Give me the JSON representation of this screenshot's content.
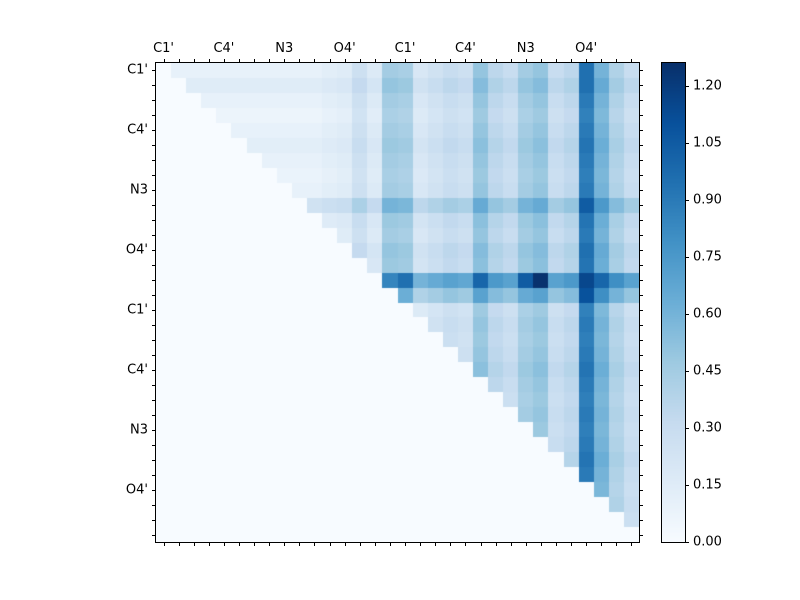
{
  "colors": {
    "background": "#ffffff",
    "axis": "#000000",
    "text": "#000000"
  },
  "chart_data": {
    "type": "heatmap",
    "title": "",
    "matrix_size": 32,
    "x_tick_labels": [
      "C1'",
      "C4'",
      "N3",
      "O4'",
      "C1'",
      "C4'",
      "N3",
      "O4'"
    ],
    "y_tick_labels": [
      "C1'",
      "C4'",
      "N3",
      "O4'",
      "C1'",
      "C4'",
      "N3",
      "O4'"
    ],
    "tick_label_every_n_cells": 4,
    "colormap": "Blues",
    "vmin": 0.0,
    "vmax": 1.26,
    "colorbar_tick_labels": [
      "0.00",
      "0.15",
      "0.30",
      "0.45",
      "0.60",
      "0.75",
      "0.90",
      "1.05",
      "1.20"
    ],
    "colorbar_tick_values": [
      0.0,
      0.15,
      0.3,
      0.45,
      0.6,
      0.75,
      0.9,
      1.05,
      1.2
    ],
    "colormap_stops": [
      [
        0.0,
        247,
        251,
        255
      ],
      [
        0.125,
        222,
        235,
        247
      ],
      [
        0.25,
        198,
        219,
        239
      ],
      [
        0.375,
        158,
        202,
        225
      ],
      [
        0.5,
        107,
        174,
        214
      ],
      [
        0.625,
        66,
        146,
        198
      ],
      [
        0.75,
        33,
        113,
        177
      ],
      [
        0.875,
        8,
        81,
        156
      ],
      [
        1.0,
        8,
        48,
        107
      ]
    ],
    "matrix": [
      [
        0,
        0.1,
        0.1,
        0.1,
        0.1,
        0.1,
        0.1,
        0.1,
        0.1,
        0.1,
        0.1,
        0.13,
        0.15,
        0.27,
        0.17,
        0.45,
        0.43,
        0.2,
        0.25,
        0.3,
        0.27,
        0.5,
        0.35,
        0.3,
        0.45,
        0.5,
        0.3,
        0.35,
        0.95,
        0.6,
        0.4,
        0.3
      ],
      [
        0,
        0,
        0.15,
        0.15,
        0.15,
        0.15,
        0.15,
        0.15,
        0.15,
        0.15,
        0.15,
        0.18,
        0.2,
        0.32,
        0.22,
        0.5,
        0.48,
        0.25,
        0.3,
        0.35,
        0.32,
        0.55,
        0.4,
        0.35,
        0.5,
        0.55,
        0.35,
        0.4,
        0.95,
        0.65,
        0.45,
        0.35
      ],
      [
        0,
        0,
        0,
        0.1,
        0.1,
        0.1,
        0.1,
        0.1,
        0.1,
        0.1,
        0.1,
        0.13,
        0.15,
        0.27,
        0.17,
        0.45,
        0.43,
        0.2,
        0.25,
        0.3,
        0.27,
        0.5,
        0.35,
        0.3,
        0.45,
        0.5,
        0.3,
        0.35,
        0.9,
        0.6,
        0.4,
        0.3
      ],
      [
        0,
        0,
        0,
        0,
        0.07,
        0.07,
        0.07,
        0.07,
        0.07,
        0.07,
        0.07,
        0.1,
        0.12,
        0.24,
        0.14,
        0.42,
        0.4,
        0.17,
        0.22,
        0.27,
        0.24,
        0.47,
        0.32,
        0.27,
        0.42,
        0.47,
        0.27,
        0.32,
        0.87,
        0.57,
        0.37,
        0.27
      ],
      [
        0,
        0,
        0,
        0,
        0,
        0.1,
        0.1,
        0.1,
        0.1,
        0.1,
        0.1,
        0.13,
        0.15,
        0.27,
        0.17,
        0.45,
        0.43,
        0.2,
        0.25,
        0.3,
        0.27,
        0.5,
        0.35,
        0.3,
        0.45,
        0.5,
        0.3,
        0.35,
        0.9,
        0.6,
        0.4,
        0.3
      ],
      [
        0,
        0,
        0,
        0,
        0,
        0,
        0.13,
        0.13,
        0.13,
        0.13,
        0.13,
        0.16,
        0.18,
        0.3,
        0.2,
        0.48,
        0.46,
        0.23,
        0.28,
        0.33,
        0.3,
        0.53,
        0.38,
        0.33,
        0.48,
        0.53,
        0.33,
        0.38,
        0.93,
        0.63,
        0.43,
        0.33
      ],
      [
        0,
        0,
        0,
        0,
        0,
        0,
        0,
        0.1,
        0.1,
        0.1,
        0.1,
        0.13,
        0.15,
        0.27,
        0.17,
        0.45,
        0.43,
        0.2,
        0.25,
        0.3,
        0.27,
        0.5,
        0.35,
        0.3,
        0.45,
        0.5,
        0.3,
        0.35,
        0.9,
        0.6,
        0.4,
        0.3
      ],
      [
        0,
        0,
        0,
        0,
        0,
        0,
        0,
        0,
        0.08,
        0.08,
        0.08,
        0.11,
        0.13,
        0.25,
        0.15,
        0.43,
        0.41,
        0.18,
        0.23,
        0.28,
        0.25,
        0.48,
        0.33,
        0.28,
        0.43,
        0.48,
        0.28,
        0.33,
        0.88,
        0.58,
        0.38,
        0.28
      ],
      [
        0,
        0,
        0,
        0,
        0,
        0,
        0,
        0,
        0,
        0.1,
        0.1,
        0.13,
        0.15,
        0.27,
        0.17,
        0.45,
        0.43,
        0.2,
        0.25,
        0.3,
        0.27,
        0.5,
        0.35,
        0.3,
        0.45,
        0.5,
        0.3,
        0.35,
        0.9,
        0.6,
        0.4,
        0.3
      ],
      [
        0,
        0,
        0,
        0,
        0,
        0,
        0,
        0,
        0,
        0,
        0.25,
        0.28,
        0.3,
        0.42,
        0.32,
        0.6,
        0.58,
        0.35,
        0.4,
        0.45,
        0.42,
        0.65,
        0.5,
        0.45,
        0.6,
        0.65,
        0.45,
        0.5,
        1.05,
        0.75,
        0.55,
        0.45
      ],
      [
        0,
        0,
        0,
        0,
        0,
        0,
        0,
        0,
        0,
        0,
        0,
        0.16,
        0.18,
        0.3,
        0.2,
        0.48,
        0.46,
        0.23,
        0.28,
        0.33,
        0.3,
        0.53,
        0.38,
        0.33,
        0.48,
        0.53,
        0.33,
        0.38,
        0.93,
        0.63,
        0.43,
        0.33
      ],
      [
        0,
        0,
        0,
        0,
        0,
        0,
        0,
        0,
        0,
        0,
        0,
        0,
        0.15,
        0.27,
        0.17,
        0.45,
        0.43,
        0.2,
        0.25,
        0.3,
        0.27,
        0.5,
        0.35,
        0.3,
        0.45,
        0.5,
        0.3,
        0.35,
        0.9,
        0.6,
        0.4,
        0.3
      ],
      [
        0,
        0,
        0,
        0,
        0,
        0,
        0,
        0,
        0,
        0,
        0,
        0,
        0,
        0.32,
        0.22,
        0.5,
        0.48,
        0.25,
        0.3,
        0.35,
        0.32,
        0.55,
        0.4,
        0.35,
        0.5,
        0.55,
        0.35,
        0.4,
        0.95,
        0.65,
        0.45,
        0.35
      ],
      [
        0,
        0,
        0,
        0,
        0,
        0,
        0,
        0,
        0,
        0,
        0,
        0,
        0,
        0,
        0.2,
        0.48,
        0.46,
        0.23,
        0.28,
        0.33,
        0.3,
        0.53,
        0.38,
        0.33,
        0.48,
        0.53,
        0.33,
        0.38,
        0.93,
        0.63,
        0.43,
        0.33
      ],
      [
        0,
        0,
        0,
        0,
        0,
        0,
        0,
        0,
        0,
        0,
        0,
        0,
        0,
        0,
        0,
        0.85,
        0.95,
        0.6,
        0.65,
        0.7,
        0.67,
        1.0,
        0.75,
        0.7,
        1.05,
        1.25,
        0.7,
        0.75,
        1.15,
        1.0,
        0.8,
        0.7
      ],
      [
        0,
        0,
        0,
        0,
        0,
        0,
        0,
        0,
        0,
        0,
        0,
        0,
        0,
        0,
        0,
        0,
        0.63,
        0.4,
        0.45,
        0.5,
        0.47,
        0.7,
        0.55,
        0.5,
        0.65,
        0.7,
        0.5,
        0.55,
        1.1,
        0.8,
        0.6,
        0.5
      ],
      [
        0,
        0,
        0,
        0,
        0,
        0,
        0,
        0,
        0,
        0,
        0,
        0,
        0,
        0,
        0,
        0,
        0,
        0.17,
        0.22,
        0.27,
        0.24,
        0.47,
        0.32,
        0.27,
        0.42,
        0.47,
        0.27,
        0.32,
        0.87,
        0.57,
        0.37,
        0.27
      ],
      [
        0,
        0,
        0,
        0,
        0,
        0,
        0,
        0,
        0,
        0,
        0,
        0,
        0,
        0,
        0,
        0,
        0,
        0,
        0.25,
        0.3,
        0.27,
        0.5,
        0.35,
        0.3,
        0.45,
        0.5,
        0.3,
        0.35,
        0.9,
        0.6,
        0.4,
        0.3
      ],
      [
        0,
        0,
        0,
        0,
        0,
        0,
        0,
        0,
        0,
        0,
        0,
        0,
        0,
        0,
        0,
        0,
        0,
        0,
        0,
        0.28,
        0.25,
        0.48,
        0.33,
        0.28,
        0.43,
        0.48,
        0.28,
        0.33,
        0.88,
        0.58,
        0.38,
        0.28
      ],
      [
        0,
        0,
        0,
        0,
        0,
        0,
        0,
        0,
        0,
        0,
        0,
        0,
        0,
        0,
        0,
        0,
        0,
        0,
        0,
        0,
        0.27,
        0.5,
        0.35,
        0.3,
        0.45,
        0.5,
        0.3,
        0.35,
        0.9,
        0.6,
        0.4,
        0.3
      ],
      [
        0,
        0,
        0,
        0,
        0,
        0,
        0,
        0,
        0,
        0,
        0,
        0,
        0,
        0,
        0,
        0,
        0,
        0,
        0,
        0,
        0,
        0.53,
        0.38,
        0.33,
        0.48,
        0.53,
        0.33,
        0.38,
        0.93,
        0.63,
        0.43,
        0.33
      ],
      [
        0,
        0,
        0,
        0,
        0,
        0,
        0,
        0,
        0,
        0,
        0,
        0,
        0,
        0,
        0,
        0,
        0,
        0,
        0,
        0,
        0,
        0,
        0.35,
        0.3,
        0.45,
        0.5,
        0.3,
        0.35,
        0.9,
        0.6,
        0.4,
        0.3
      ],
      [
        0,
        0,
        0,
        0,
        0,
        0,
        0,
        0,
        0,
        0,
        0,
        0,
        0,
        0,
        0,
        0,
        0,
        0,
        0,
        0,
        0,
        0,
        0,
        0.28,
        0.43,
        0.48,
        0.28,
        0.33,
        0.88,
        0.58,
        0.38,
        0.28
      ],
      [
        0,
        0,
        0,
        0,
        0,
        0,
        0,
        0,
        0,
        0,
        0,
        0,
        0,
        0,
        0,
        0,
        0,
        0,
        0,
        0,
        0,
        0,
        0,
        0,
        0.45,
        0.5,
        0.3,
        0.35,
        0.9,
        0.6,
        0.4,
        0.3
      ],
      [
        0,
        0,
        0,
        0,
        0,
        0,
        0,
        0,
        0,
        0,
        0,
        0,
        0,
        0,
        0,
        0,
        0,
        0,
        0,
        0,
        0,
        0,
        0,
        0,
        0,
        0.48,
        0.28,
        0.33,
        0.88,
        0.58,
        0.38,
        0.28
      ],
      [
        0,
        0,
        0,
        0,
        0,
        0,
        0,
        0,
        0,
        0,
        0,
        0,
        0,
        0,
        0,
        0,
        0,
        0,
        0,
        0,
        0,
        0,
        0,
        0,
        0,
        0,
        0.3,
        0.35,
        0.9,
        0.6,
        0.4,
        0.3
      ],
      [
        0,
        0,
        0,
        0,
        0,
        0,
        0,
        0,
        0,
        0,
        0,
        0,
        0,
        0,
        0,
        0,
        0,
        0,
        0,
        0,
        0,
        0,
        0,
        0,
        0,
        0,
        0,
        0.38,
        0.93,
        0.63,
        0.43,
        0.33
      ],
      [
        0,
        0,
        0,
        0,
        0,
        0,
        0,
        0,
        0,
        0,
        0,
        0,
        0,
        0,
        0,
        0,
        0,
        0,
        0,
        0,
        0,
        0,
        0,
        0,
        0,
        0,
        0,
        0,
        0.9,
        0.6,
        0.4,
        0.3
      ],
      [
        0,
        0,
        0,
        0,
        0,
        0,
        0,
        0,
        0,
        0,
        0,
        0,
        0,
        0,
        0,
        0,
        0,
        0,
        0,
        0,
        0,
        0,
        0,
        0,
        0,
        0,
        0,
        0,
        0,
        0.58,
        0.38,
        0.28
      ],
      [
        0,
        0,
        0,
        0,
        0,
        0,
        0,
        0,
        0,
        0,
        0,
        0,
        0,
        0,
        0,
        0,
        0,
        0,
        0,
        0,
        0,
        0,
        0,
        0,
        0,
        0,
        0,
        0,
        0,
        0,
        0.4,
        0.3
      ],
      [
        0,
        0,
        0,
        0,
        0,
        0,
        0,
        0,
        0,
        0,
        0,
        0,
        0,
        0,
        0,
        0,
        0,
        0,
        0,
        0,
        0,
        0,
        0,
        0,
        0,
        0,
        0,
        0,
        0,
        0,
        0,
        0.28
      ],
      [
        0,
        0,
        0,
        0,
        0,
        0,
        0,
        0,
        0,
        0,
        0,
        0,
        0,
        0,
        0,
        0,
        0,
        0,
        0,
        0,
        0,
        0,
        0,
        0,
        0,
        0,
        0,
        0,
        0,
        0,
        0,
        0
      ]
    ]
  }
}
